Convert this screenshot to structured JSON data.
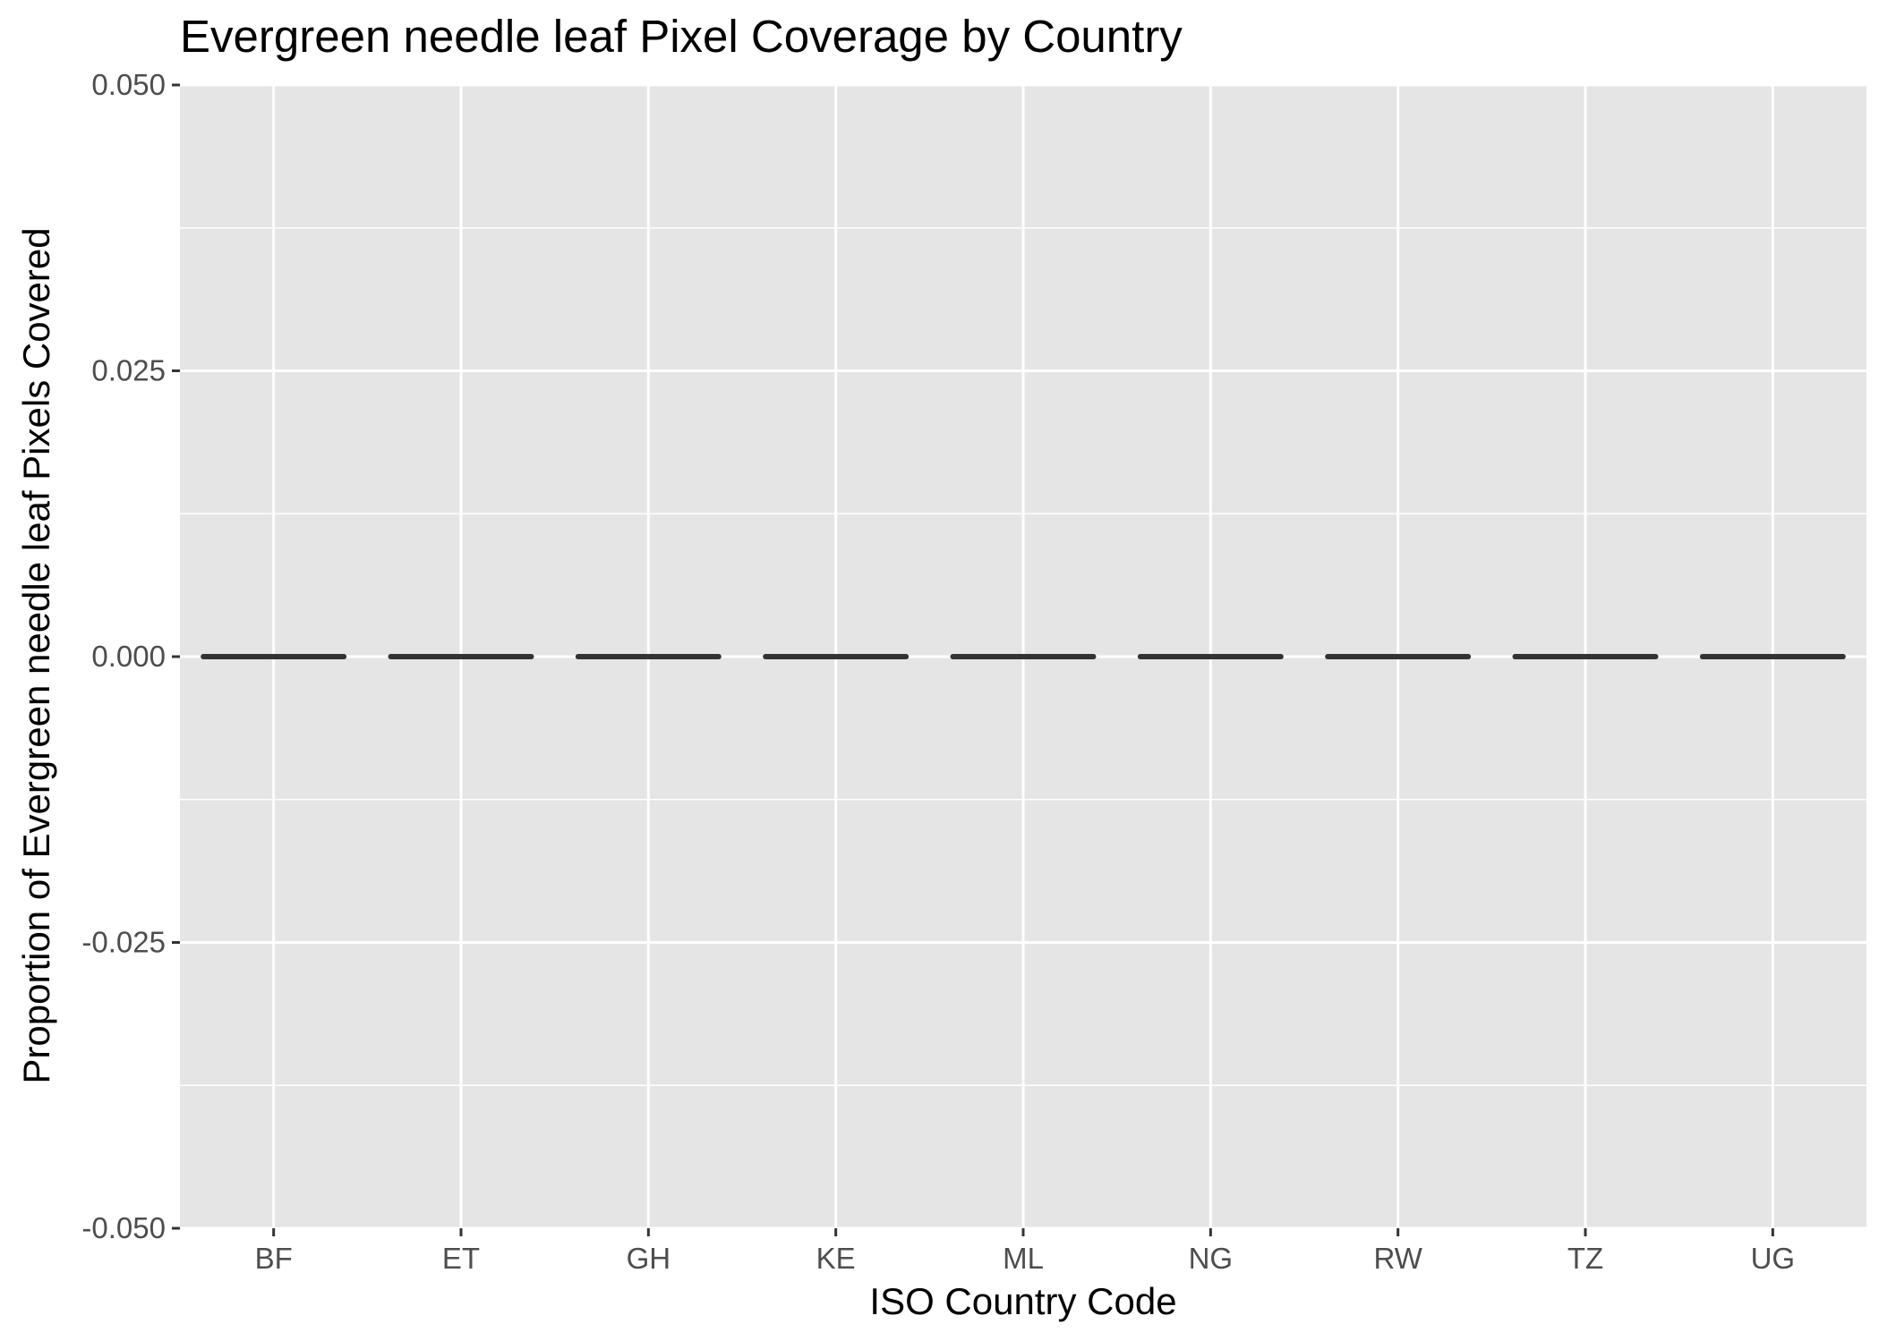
{
  "chart_data": {
    "type": "boxplot",
    "title": "Evergreen needle leaf Pixel Coverage by Country",
    "xlabel": "ISO Country Code",
    "ylabel": "Proportion of Evergreen needle leaf Pixels Covered",
    "categories": [
      "BF",
      "ET",
      "GH",
      "KE",
      "ML",
      "NG",
      "RW",
      "TZ",
      "UG"
    ],
    "values": [
      0,
      0,
      0,
      0,
      0,
      0,
      0,
      0,
      0
    ],
    "ylim": [
      -0.05,
      0.05
    ],
    "yticks": [
      -0.05,
      -0.025,
      0,
      0.025,
      0.05
    ],
    "ytick_labels": [
      "-0.050",
      "-0.025",
      "0.000",
      "0.025",
      "0.050"
    ],
    "grid": true,
    "legend": "none",
    "colors": {
      "panel_background": "#e5e5e5",
      "grid_major": "#ffffff",
      "grid_minor": "#f2f2f2",
      "box_line": "#333333",
      "tick_mark": "#333333",
      "tick_text": "#4d4d4d",
      "title_text": "#000000"
    }
  }
}
